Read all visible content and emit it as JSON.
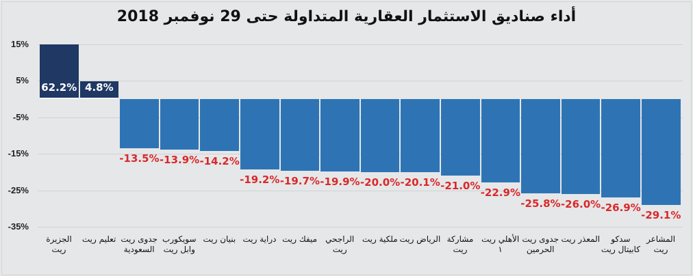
{
  "chart_data": {
    "type": "bar",
    "title": "أداء صناديق الاستثمار العقارية المتداولة حتى 29 نوفمبر 2018",
    "xlabel": "",
    "ylabel": "",
    "ylim": [
      -35,
      15
    ],
    "yticks": [
      "15%",
      "5%",
      "-5%",
      "-15%",
      "-25%",
      "-35%"
    ],
    "grid": true,
    "legend": null,
    "categories": [
      "الجزيرة ريت",
      "تعليم ريت",
      "جدوى ريت السعودية",
      "سويكورب وابل ريت",
      "بنيان ريت",
      "دراية ريت",
      "ميفك ريت",
      "الراجحي ريت",
      "ملكية ريت",
      "الرياض ريت",
      "مشاركة ريت",
      "الأهلي ريت ١",
      "جدوى ريت الحرمين",
      "المعذر ريت",
      "سدكو كابيتال ريت",
      "المشاعر ريت"
    ],
    "values": [
      62.2,
      4.8,
      -13.5,
      -13.9,
      -14.2,
      -19.2,
      -19.7,
      -19.9,
      -20.0,
      -20.1,
      -21.0,
      -22.9,
      -25.8,
      -26.0,
      -26.9,
      -29.1
    ],
    "value_labels": [
      "62.2%",
      "4.8%",
      "-13.5%",
      "-13.9%",
      "-14.2%",
      "-19.2%",
      "-19.7%",
      "-19.9%",
      "-20.0%",
      "-20.1%",
      "-21.0%",
      "-22.9%",
      "-25.8%",
      "-26.0%",
      "-26.9%",
      "-29.1%"
    ],
    "annotations": [
      "First bar (62.2%) is clipped at the 15% axis maximum"
    ],
    "colors": {
      "positive": "#1f3864",
      "negative": "#2e74b5",
      "negative_label": "#d9292b",
      "positive_label": "#ffffff"
    }
  }
}
